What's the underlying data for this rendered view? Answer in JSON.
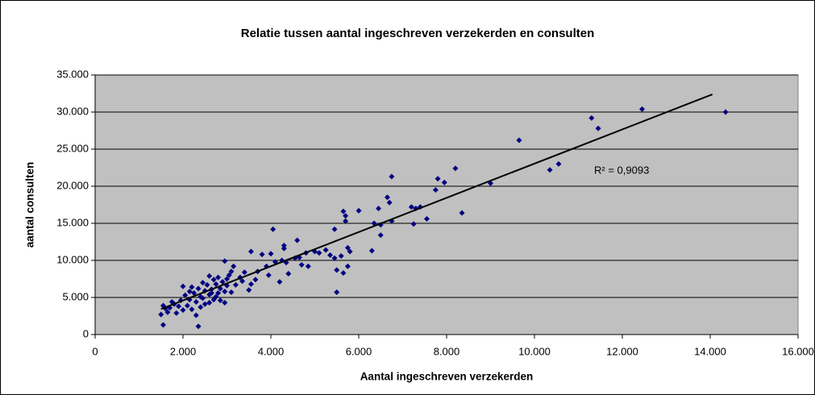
{
  "chart_data": {
    "type": "scatter",
    "title": "Relatie tussen aantal ingeschreven verzekerden en consulten",
    "x_label": "Aantal ingeschreven verzekerden",
    "y_label": "aantal consulten",
    "annotation": "R² = 0,9093",
    "color": "#000080",
    "plot_background": "#c0c0c0",
    "grid": true,
    "xlim": [
      0,
      16000
    ],
    "ylim": [
      0,
      35000
    ],
    "xticks": [
      0,
      {
        "value": 2000,
        "label": "2.000"
      },
      {
        "value": 4000,
        "label": "4.000"
      },
      {
        "value": 6000,
        "label": "6.000"
      },
      {
        "value": 8000,
        "label": "8.000"
      },
      {
        "value": 10000,
        "label": "10.000"
      },
      {
        "value": 12000,
        "label": "12.000"
      },
      {
        "value": 14000,
        "label": "14.000"
      },
      {
        "value": 16000,
        "label": "16.000"
      }
    ],
    "yticks": [
      0,
      {
        "value": 5000,
        "label": "5.000"
      },
      {
        "value": 10000,
        "label": "10.000"
      },
      {
        "value": 15000,
        "label": "15.000"
      },
      {
        "value": 20000,
        "label": "20.000"
      },
      {
        "value": 25000,
        "label": "25.000"
      },
      {
        "value": 30000,
        "label": "30.000"
      },
      {
        "value": 35000,
        "label": "35.000"
      }
    ],
    "trendline": {
      "x": [
        1500,
        14050
      ],
      "y": [
        3440,
        32390
      ],
      "color": "#000000"
    },
    "x": [
      14350,
      12450,
      11300,
      11450,
      10550,
      10350,
      9650,
      9000,
      8350,
      8200,
      7950,
      7800,
      7750,
      7550,
      7400,
      7300,
      7200,
      7250,
      6750,
      6700,
      6650,
      6750,
      6500,
      6500,
      6450,
      6350,
      6300,
      6000,
      5800,
      5750,
      5750,
      5700,
      5650,
      5700,
      5600,
      5650,
      5500,
      5500,
      5450,
      5450,
      5350,
      5250,
      5100,
      5000,
      4850,
      4800,
      4700,
      4650,
      4600,
      4550,
      4400,
      4350,
      4300,
      4300,
      4250,
      4200,
      4100,
      4050,
      4000,
      3950,
      3900,
      3800,
      3700,
      3650,
      3550,
      3550,
      3500,
      3400,
      3350,
      3300,
      3200,
      3150,
      3100,
      3050,
      3000,
      2950,
      3000,
      2950,
      2950,
      2900,
      2850,
      2800,
      2800,
      2750,
      2700,
      2700,
      2650,
      2600,
      2600,
      2550,
      2500,
      2500,
      2450,
      2400,
      2400,
      2350,
      2350,
      2300,
      2300,
      2250,
      2200,
      2200,
      2150,
      2100,
      2050,
      2000,
      2000,
      1950,
      1900,
      1850,
      1800,
      1750,
      1700,
      1650,
      1600,
      1550,
      1550,
      1500,
      2600,
      2750,
      2850,
      3100,
      2450,
      2650,
      2150
    ],
    "y": [
      30000,
      30400,
      29200,
      27800,
      23000,
      22200,
      26200,
      20400,
      16400,
      22400,
      20500,
      21000,
      19500,
      15600,
      17200,
      17000,
      17200,
      14900,
      21300,
      17800,
      18500,
      15300,
      14800,
      13400,
      17000,
      15000,
      11300,
      16700,
      11200,
      11700,
      9200,
      16000,
      16600,
      15300,
      10600,
      8300,
      8700,
      5700,
      14200,
      10300,
      10700,
      11400,
      11000,
      11200,
      9200,
      11000,
      9400,
      10400,
      12700,
      10300,
      8200,
      9700,
      11600,
      12000,
      10000,
      7100,
      9800,
      14200,
      10900,
      8000,
      9200,
      10800,
      8500,
      7400,
      11200,
      6800,
      6000,
      8400,
      7200,
      7700,
      6700,
      9200,
      8500,
      8000,
      7500,
      9900,
      6600,
      4300,
      5800,
      7100,
      6200,
      7700,
      5600,
      6800,
      4700,
      7400,
      6100,
      7900,
      5400,
      6700,
      4100,
      5900,
      7000,
      3700,
      5100,
      6200,
      1100,
      4400,
      2600,
      5600,
      3400,
      6400,
      4700,
      3900,
      5300,
      6500,
      3300,
      4600,
      3800,
      2900,
      4100,
      4400,
      3600,
      3000,
      3500,
      1300,
      3900,
      2700,
      4300,
      5100,
      4600,
      5700,
      4900,
      5600,
      5800
    ]
  }
}
